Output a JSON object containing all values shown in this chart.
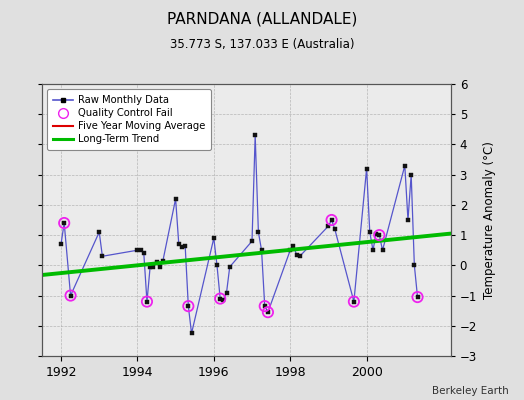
{
  "title": "PARNDANA (ALLANDALE)",
  "subtitle": "35.773 S, 137.033 E (Australia)",
  "ylabel": "Temperature Anomaly (°C)",
  "credit": "Berkeley Earth",
  "ylim": [
    -3,
    6
  ],
  "xlim": [
    1991.5,
    2002.2
  ],
  "xticks": [
    1992,
    1994,
    1996,
    1998,
    2000
  ],
  "yticks": [
    -3,
    -2,
    -1,
    0,
    1,
    2,
    3,
    4,
    5,
    6
  ],
  "bg_color": "#e0e0e0",
  "plot_bg_color": "#ebebeb",
  "raw_x": [
    1992.0,
    1992.083,
    1992.25,
    1993.0,
    1993.083,
    1994.0,
    1994.083,
    1994.167,
    1994.25,
    1994.333,
    1994.417,
    1994.5,
    1994.583,
    1994.667,
    1995.0,
    1995.083,
    1995.167,
    1995.25,
    1995.333,
    1995.417,
    1996.0,
    1996.083,
    1996.167,
    1996.25,
    1996.333,
    1996.417,
    1997.0,
    1997.083,
    1997.167,
    1997.25,
    1997.333,
    1997.417,
    1998.0,
    1998.083,
    1998.167,
    1998.25,
    1999.0,
    1999.083,
    1999.167,
    1999.667,
    2000.0,
    2000.083,
    2000.167,
    2000.25,
    2000.333,
    2000.417,
    2001.0,
    2001.083,
    2001.167,
    2001.25,
    2001.333
  ],
  "raw_y": [
    0.7,
    1.4,
    -1.0,
    1.1,
    0.3,
    0.5,
    0.5,
    0.4,
    -1.2,
    -0.05,
    -0.05,
    0.1,
    -0.05,
    0.15,
    2.2,
    0.7,
    0.6,
    0.65,
    -1.35,
    -2.25,
    0.9,
    0.0,
    -1.1,
    -1.15,
    -0.9,
    -0.05,
    0.8,
    4.3,
    1.1,
    0.5,
    -1.35,
    -1.55,
    0.5,
    0.65,
    0.35,
    0.3,
    1.3,
    1.5,
    1.2,
    -1.2,
    3.2,
    1.1,
    0.5,
    1.05,
    1.0,
    0.5,
    3.3,
    1.5,
    3.0,
    0.0,
    -1.05
  ],
  "qc_fail_x": [
    1992.083,
    1992.25,
    1994.25,
    1995.333,
    1996.167,
    1997.333,
    1997.417,
    1999.083,
    1999.667,
    2000.333,
    2001.333
  ],
  "qc_fail_y": [
    1.4,
    -1.0,
    -1.2,
    -1.35,
    -1.1,
    -1.35,
    -1.55,
    1.5,
    -1.2,
    1.0,
    -1.05
  ],
  "trend_x": [
    1991.5,
    2002.2
  ],
  "trend_y": [
    -0.32,
    1.05
  ],
  "line_color": "#5555cc",
  "marker_color": "#111111",
  "qc_color": "#ee22ee",
  "trend_color": "#00bb00",
  "moving_avg_color": "#dd0000"
}
